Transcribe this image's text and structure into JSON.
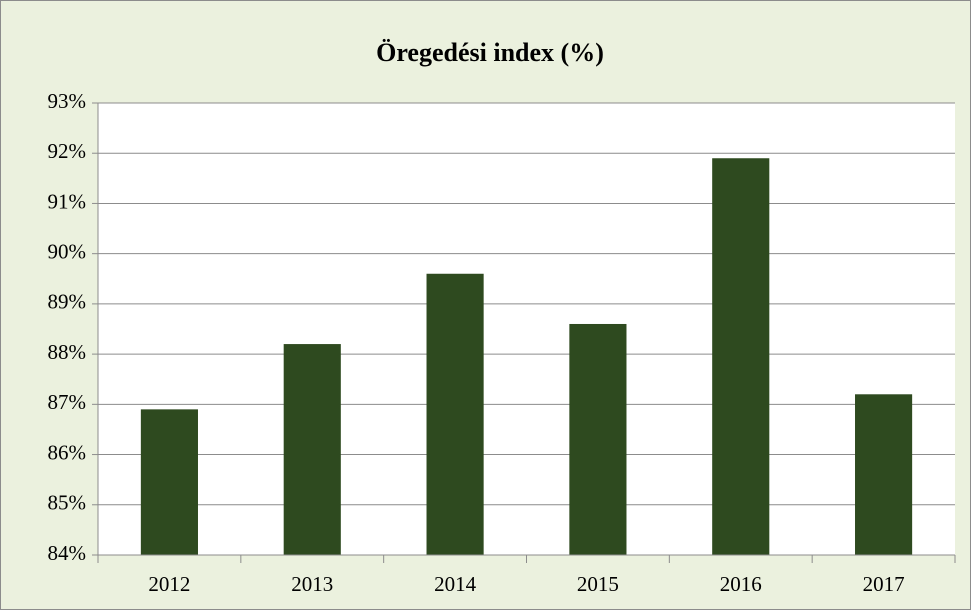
{
  "chart_data": {
    "type": "bar",
    "title": "Öregedési index (%)",
    "categories": [
      "2012",
      "2013",
      "2014",
      "2015",
      "2016",
      "2017"
    ],
    "values": [
      86.9,
      88.2,
      89.6,
      88.6,
      91.9,
      87.2
    ],
    "color": "#2e4a1f",
    "ylim": [
      84,
      93
    ],
    "yticks": [
      {
        "value": 84,
        "label": "84%"
      },
      {
        "value": 85,
        "label": "85%"
      },
      {
        "value": 86,
        "label": "86%"
      },
      {
        "value": 87,
        "label": "87%"
      },
      {
        "value": 88,
        "label": "88%"
      },
      {
        "value": 89,
        "label": "89%"
      },
      {
        "value": 90,
        "label": "90%"
      },
      {
        "value": 91,
        "label": "91%"
      },
      {
        "value": 92,
        "label": "92%"
      },
      {
        "value": 93,
        "label": "93%"
      }
    ],
    "grid": true
  }
}
